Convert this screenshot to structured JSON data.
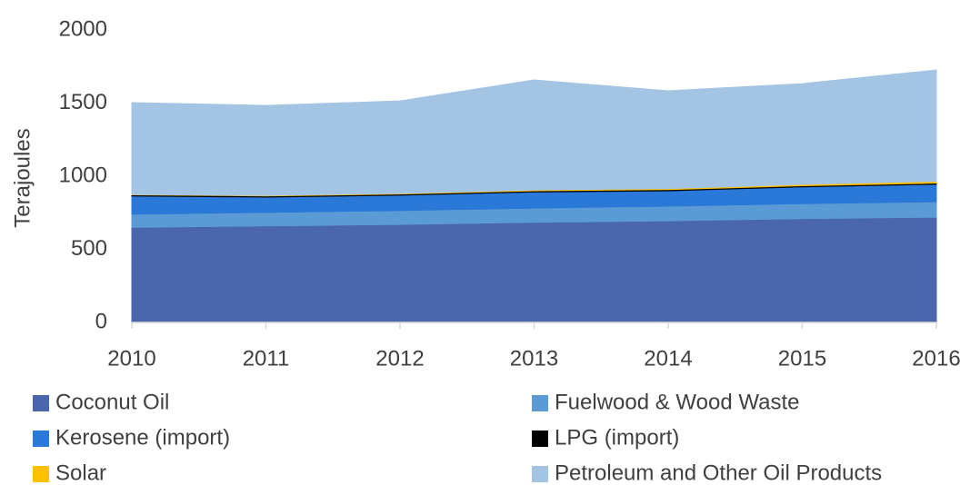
{
  "chart_data": {
    "type": "stacked_area",
    "y_label": "Terajoules",
    "categories": [
      "2010",
      "2011",
      "2012",
      "2013",
      "2014",
      "2015",
      "2016"
    ],
    "series": [
      {
        "name": "Coconut Oil",
        "color": "#4a66ad",
        "values": [
          650,
          660,
          670,
          685,
          695,
          710,
          720
        ]
      },
      {
        "name": "Fuelwood & Wood Waste",
        "color": "#5b9bd5",
        "values": [
          90,
          92,
          95,
          97,
          100,
          102,
          105
        ]
      },
      {
        "name": "Kerosene (import)",
        "color": "#2a78d8",
        "values": [
          125,
          105,
          105,
          110,
          105,
          115,
          120
        ]
      },
      {
        "name": "LPG (import)",
        "color": "#000000",
        "values": [
          8,
          8,
          8,
          8,
          8,
          8,
          8
        ]
      },
      {
        "name": "Solar",
        "color": "#ffc000",
        "values": [
          2,
          3,
          4,
          6,
          7,
          9,
          12
        ]
      },
      {
        "name": "Petroleum and Other Oil Products",
        "color": "#a3c4e3",
        "values": [
          628,
          616,
          633,
          752,
          669,
          689,
          761
        ]
      }
    ],
    "ylim": [
      0,
      2000
    ],
    "yticks": [
      0,
      500,
      1000,
      1500,
      2000
    ],
    "grid": false
  }
}
